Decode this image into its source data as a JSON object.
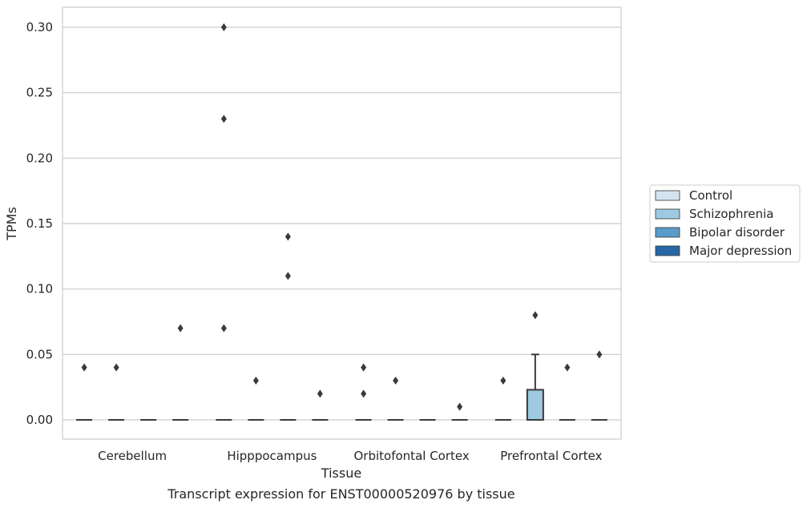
{
  "chart_data": {
    "type": "box",
    "title": "",
    "caption": "Transcript expression for ENST00000520976 by tissue",
    "xlabel": "Tissue",
    "ylabel": "TPMs",
    "ylim": [
      -0.015,
      0.315
    ],
    "yticks": [
      0.0,
      0.05,
      0.1,
      0.15,
      0.2,
      0.25,
      0.3
    ],
    "ytick_labels": [
      "0.00",
      "0.05",
      "0.10",
      "0.15",
      "0.20",
      "0.25",
      "0.30"
    ],
    "grid": "horizontal",
    "legend_position": "right",
    "categories": [
      "Cerebellum",
      "Hipppocampus",
      "Orbitofontal Cortex",
      "Prefrontal Cortex"
    ],
    "series": [
      {
        "name": "Control",
        "color": "#d6e4f0",
        "boxes": [
          {
            "q1": 0,
            "median": 0,
            "q3": 0,
            "whisker_low": 0,
            "whisker_high": 0,
            "outliers": [
              0.04
            ]
          },
          {
            "q1": 0,
            "median": 0,
            "q3": 0,
            "whisker_low": 0,
            "whisker_high": 0,
            "outliers": [
              0.3,
              0.23,
              0.07
            ]
          },
          {
            "q1": 0,
            "median": 0,
            "q3": 0,
            "whisker_low": 0,
            "whisker_high": 0,
            "outliers": [
              0.04,
              0.02
            ]
          },
          {
            "q1": 0,
            "median": 0,
            "q3": 0,
            "whisker_low": 0,
            "whisker_high": 0,
            "outliers": [
              0.03
            ]
          }
        ]
      },
      {
        "name": "Schizophrenia",
        "color": "#9ecae1",
        "boxes": [
          {
            "q1": 0,
            "median": 0,
            "q3": 0,
            "whisker_low": 0,
            "whisker_high": 0,
            "outliers": [
              0.04
            ]
          },
          {
            "q1": 0,
            "median": 0,
            "q3": 0,
            "whisker_low": 0,
            "whisker_high": 0,
            "outliers": [
              0.03
            ]
          },
          {
            "q1": 0,
            "median": 0,
            "q3": 0,
            "whisker_low": 0,
            "whisker_high": 0,
            "outliers": [
              0.03
            ]
          },
          {
            "q1": 0,
            "median": 0,
            "q3": 0.023,
            "whisker_low": 0,
            "whisker_high": 0.05,
            "outliers": [
              0.08
            ]
          }
        ]
      },
      {
        "name": "Bipolar disorder",
        "color": "#5a9bc9",
        "boxes": [
          {
            "q1": 0,
            "median": 0,
            "q3": 0,
            "whisker_low": 0,
            "whisker_high": 0,
            "outliers": []
          },
          {
            "q1": 0,
            "median": 0,
            "q3": 0,
            "whisker_low": 0,
            "whisker_high": 0,
            "outliers": [
              0.14,
              0.11
            ]
          },
          {
            "q1": 0,
            "median": 0,
            "q3": 0,
            "whisker_low": 0,
            "whisker_high": 0,
            "outliers": []
          },
          {
            "q1": 0,
            "median": 0,
            "q3": 0,
            "whisker_low": 0,
            "whisker_high": 0,
            "outliers": [
              0.04
            ]
          }
        ]
      },
      {
        "name": "Major depression",
        "color": "#2767a8",
        "boxes": [
          {
            "q1": 0,
            "median": 0,
            "q3": 0,
            "whisker_low": 0,
            "whisker_high": 0,
            "outliers": [
              0.07
            ]
          },
          {
            "q1": 0,
            "median": 0,
            "q3": 0,
            "whisker_low": 0,
            "whisker_high": 0,
            "outliers": [
              0.02
            ]
          },
          {
            "q1": 0,
            "median": 0,
            "q3": 0,
            "whisker_low": 0,
            "whisker_high": 0,
            "outliers": [
              0.01
            ]
          },
          {
            "q1": 0,
            "median": 0,
            "q3": 0,
            "whisker_low": 0,
            "whisker_high": 0,
            "outliers": [
              0.05
            ]
          }
        ]
      }
    ]
  }
}
